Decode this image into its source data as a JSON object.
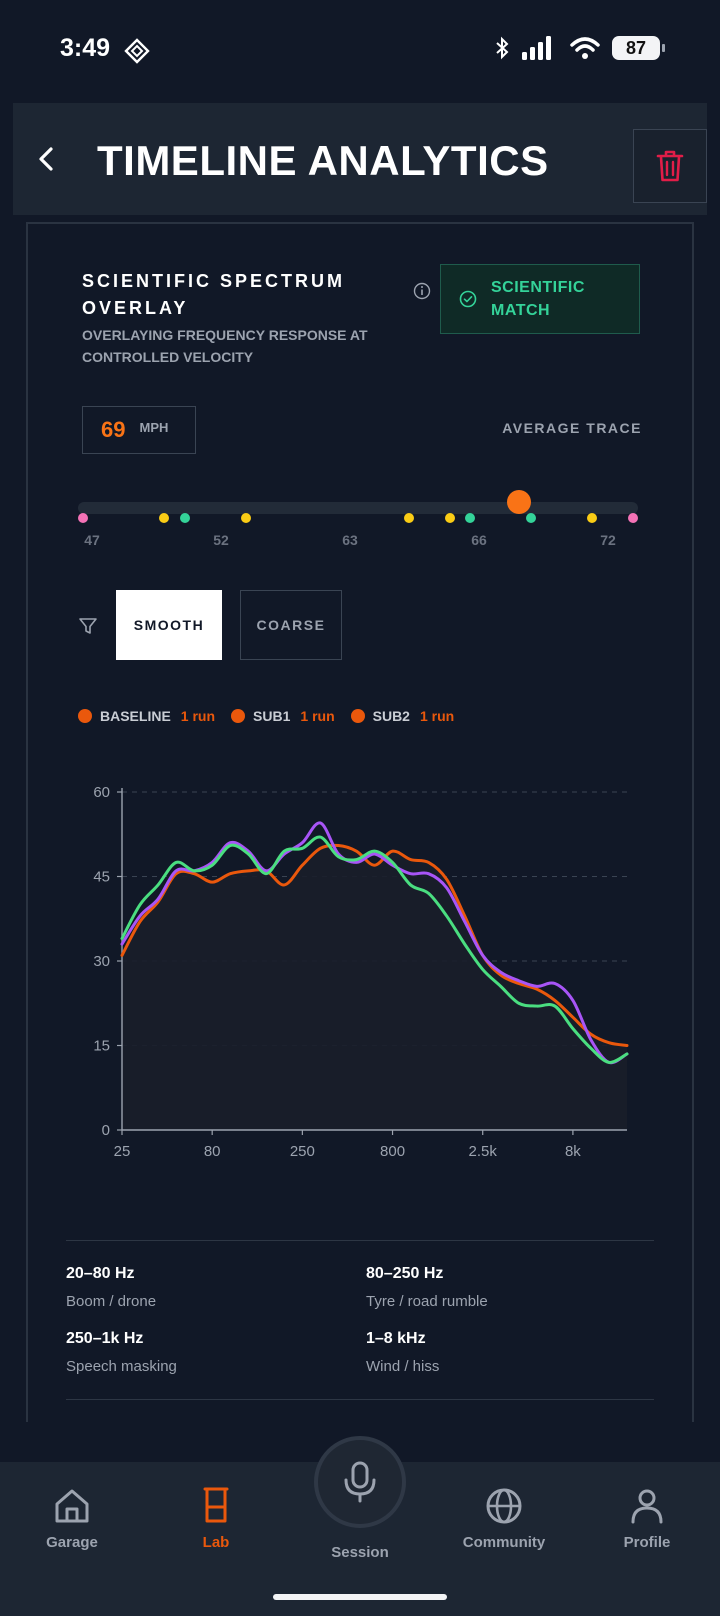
{
  "status_bar": {
    "time": "3:49",
    "battery": "87"
  },
  "header": {
    "title": "TIMELINE ANALYTICS"
  },
  "card": {
    "title": "SCIENTIFIC SPECTRUM OVERLAY",
    "subtitle": "OVERLAYING FREQUENCY RESPONSE AT CONTROLLED VELOCITY",
    "badge": "SCIENTIFIC MATCH",
    "speed_value": "69",
    "speed_unit": "MPH",
    "trace_label": "AVERAGE TRACE"
  },
  "slider": {
    "ticks": [
      "47",
      "52",
      "63",
      "66",
      "72"
    ],
    "selected_fraction": 0.8,
    "markers": [
      {
        "pos": 0.0,
        "color": "#f472b6"
      },
      {
        "pos": 0.148,
        "color": "#facc15"
      },
      {
        "pos": 0.185,
        "color": "#34d399"
      },
      {
        "pos": 0.296,
        "color": "#facc15"
      },
      {
        "pos": 0.593,
        "color": "#facc15"
      },
      {
        "pos": 0.667,
        "color": "#facc15"
      },
      {
        "pos": 0.704,
        "color": "#34d399"
      },
      {
        "pos": 0.815,
        "color": "#34d399"
      },
      {
        "pos": 0.926,
        "color": "#facc15"
      },
      {
        "pos": 1.0,
        "color": "#f472b6"
      }
    ]
  },
  "filters": {
    "smooth": "SMOOTH",
    "coarse": "COARSE"
  },
  "legend": [
    {
      "name": "BASELINE",
      "count": "1 run"
    },
    {
      "name": "SUB1",
      "count": "1 run"
    },
    {
      "name": "SUB2",
      "count": "1 run"
    }
  ],
  "chart_data": {
    "type": "line",
    "x_ticks": [
      "25",
      "80",
      "250",
      "800",
      "2.5k",
      "8k"
    ],
    "ylim": [
      0,
      60
    ],
    "y_ticks": [
      0,
      15,
      30,
      45,
      60
    ],
    "grid": true,
    "x": [
      0,
      0.1,
      0.2,
      0.3,
      0.4,
      0.5,
      0.6,
      0.7,
      0.8,
      0.9,
      1.0,
      1.1,
      1.2,
      1.3,
      1.4,
      1.5,
      1.6,
      1.7,
      1.8,
      1.9,
      2.0,
      2.1,
      2.2,
      2.3,
      2.4,
      2.5,
      2.6,
      2.7,
      2.8
    ],
    "series": [
      {
        "color": "#ea580c",
        "values": [
          31,
          37,
          40.5,
          45.5,
          45.5,
          44,
          45.5,
          46,
          46,
          43.5,
          47,
          50,
          50.5,
          49.5,
          47,
          49.5,
          48,
          47.5,
          44.5,
          38,
          31,
          27.5,
          26,
          25,
          23,
          20,
          17,
          15.5,
          15
        ]
      },
      {
        "color": "#a855f7",
        "values": [
          33,
          38,
          41,
          46,
          46,
          47.5,
          51,
          49.5,
          46,
          49,
          51,
          54.5,
          49,
          47.5,
          49,
          47,
          45.5,
          45.5,
          43,
          37,
          31,
          28,
          26.5,
          25.5,
          26,
          23,
          16,
          12,
          13.5
        ]
      },
      {
        "color": "#4ade80",
        "values": [
          34,
          40,
          43.5,
          47.5,
          46,
          47,
          50.5,
          49,
          45.5,
          49.5,
          50,
          52,
          48.5,
          48,
          49.5,
          47.5,
          43.5,
          42,
          38,
          33,
          28.5,
          25.5,
          22.5,
          22,
          22,
          18,
          14.5,
          12,
          13.5
        ]
      }
    ]
  },
  "bands": [
    {
      "range": "20–80 Hz",
      "desc": "Boom / drone"
    },
    {
      "range": "80–250 Hz",
      "desc": "Tyre / road rumble"
    },
    {
      "range": "250–1k Hz",
      "desc": "Speech masking"
    },
    {
      "range": "1–8 kHz",
      "desc": "Wind / hiss"
    }
  ],
  "nav": {
    "garage": "Garage",
    "lab": "Lab",
    "session": "Session",
    "community": "Community",
    "profile": "Profile"
  },
  "colors": {
    "accent": "#ea580c",
    "match": "#34d399",
    "danger": "#e11d48"
  }
}
